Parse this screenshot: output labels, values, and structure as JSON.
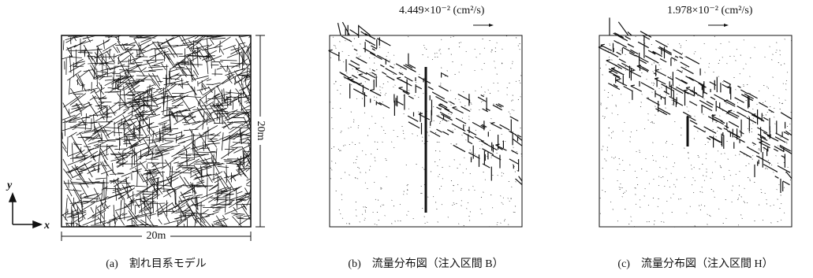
{
  "panels": [
    {
      "caption": "(a)　割れ目系モデル",
      "dimension_x": "20m",
      "dimension_y": "20m",
      "axis_x": "x",
      "axis_y": "y"
    },
    {
      "caption": "(b)　流量分布図（注入区間 B）",
      "scale_label": "4.449×10⁻² (cm²/s)"
    },
    {
      "caption": "(c)　流量分布図（注入区間 H）",
      "scale_label": "1.978×10⁻² (cm²/s)"
    }
  ]
}
